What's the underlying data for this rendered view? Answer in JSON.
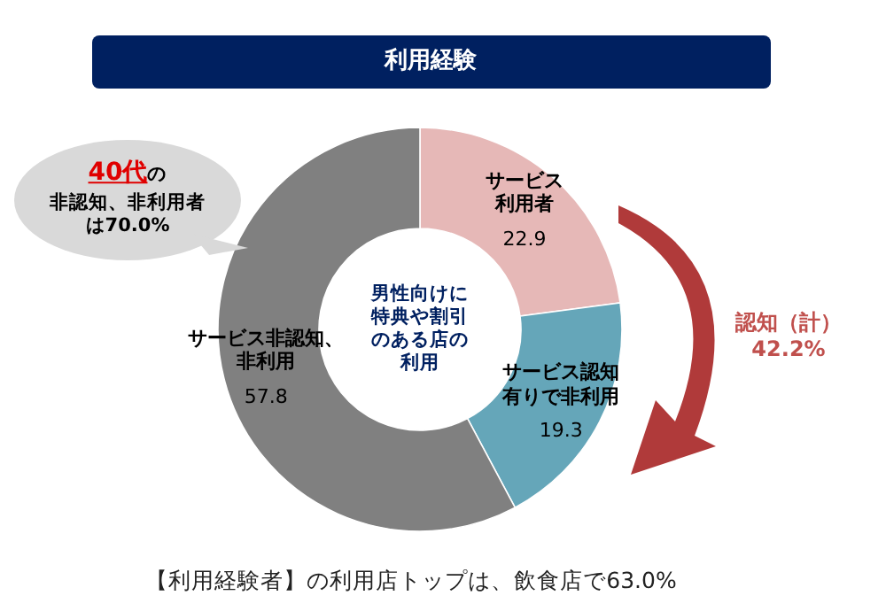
{
  "chart_data": {
    "type": "donut",
    "title": "利用経験",
    "categories": [
      "サービス利用者",
      "サービス認知有りで非利用",
      "サービス非認知、非利用"
    ],
    "values": [
      22.9,
      19.3,
      57.8
    ],
    "colors": [
      "#e6b8b7",
      "#65a6b9",
      "#808080"
    ],
    "data_labels": true,
    "annotations": [
      "男性向けに特典や割引のある店の利用",
      "40代",
      "の",
      "非認知、非利用者は70.0%",
      "認知（計）42.2%",
      "【利用経験者】の利用店トップは、飲食店で63.0%"
    ]
  }
}
